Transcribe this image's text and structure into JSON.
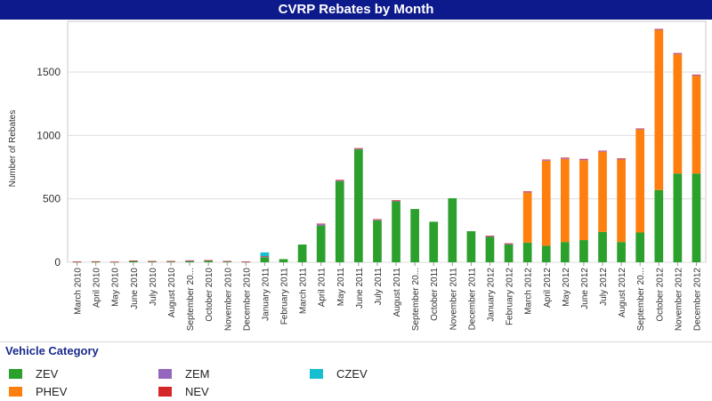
{
  "chart_data": {
    "type": "bar",
    "stacked": true,
    "title": "CVRP Rebates by Month",
    "xlabel": "",
    "ylabel": "Number of Rebates",
    "ylim": [
      0,
      1900
    ],
    "yticks": [
      0,
      500,
      1000,
      1500
    ],
    "grid": true,
    "categories": [
      "March 2010",
      "April 2010",
      "May 2010",
      "June 2010",
      "July 2010",
      "August 2010",
      "September 20...",
      "October 2010",
      "November 2010",
      "December 2010",
      "January 2011",
      "February 2011",
      "March 2011",
      "April 2011",
      "May 2011",
      "June 2011",
      "July 2011",
      "August 2011",
      "September 20...",
      "October 2011",
      "November 2011",
      "December 2011",
      "January 2012",
      "February 2012",
      "March 2012",
      "April 2012",
      "May 2012",
      "June 2012",
      "July 2012",
      "August 2012",
      "September 20...",
      "October 2012",
      "November 2012",
      "December 2012"
    ],
    "series": [
      {
        "name": "ZEV",
        "color": "#2ca02c",
        "values": [
          3,
          3,
          2,
          10,
          5,
          5,
          8,
          12,
          6,
          3,
          40,
          25,
          140,
          290,
          640,
          890,
          330,
          480,
          420,
          320,
          505,
          245,
          200,
          140,
          155,
          130,
          160,
          175,
          240,
          160,
          235,
          570,
          700,
          700
        ]
      },
      {
        "name": "PHEV",
        "color": "#ff7f0e",
        "values": [
          0,
          0,
          0,
          0,
          0,
          0,
          0,
          0,
          0,
          0,
          0,
          0,
          0,
          0,
          0,
          0,
          0,
          0,
          0,
          0,
          0,
          0,
          0,
          0,
          395,
          670,
          655,
          630,
          630,
          650,
          810,
          1260,
          940,
          770
        ]
      },
      {
        "name": "ZEM",
        "color": "#9467bd",
        "values": [
          2,
          4,
          2,
          3,
          4,
          4,
          6,
          4,
          3,
          2,
          6,
          0,
          0,
          10,
          5,
          5,
          5,
          5,
          0,
          0,
          0,
          0,
          5,
          5,
          5,
          5,
          5,
          5,
          5,
          5,
          5,
          5,
          5,
          5
        ]
      },
      {
        "name": "NEV",
        "color": "#d62728",
        "values": [
          1,
          1,
          1,
          1,
          1,
          1,
          1,
          1,
          1,
          1,
          2,
          0,
          0,
          5,
          5,
          5,
          5,
          5,
          0,
          0,
          0,
          0,
          5,
          5,
          5,
          5,
          5,
          5,
          5,
          5,
          5,
          5,
          5,
          5
        ]
      },
      {
        "name": "CZEV",
        "color": "#17becf",
        "values": [
          0,
          0,
          0,
          0,
          0,
          0,
          0,
          0,
          0,
          0,
          30,
          0,
          0,
          0,
          0,
          0,
          0,
          0,
          0,
          0,
          0,
          0,
          0,
          0,
          0,
          0,
          0,
          0,
          0,
          0,
          0,
          0,
          0,
          0
        ]
      }
    ]
  },
  "legend": {
    "title": "Vehicle Category",
    "items": [
      {
        "label": "ZEV",
        "color": "#2ca02c"
      },
      {
        "label": "PHEV",
        "color": "#ff7f0e"
      },
      {
        "label": "ZEM",
        "color": "#9467bd"
      },
      {
        "label": "NEV",
        "color": "#d62728"
      },
      {
        "label": "CZEV",
        "color": "#17becf"
      }
    ]
  }
}
